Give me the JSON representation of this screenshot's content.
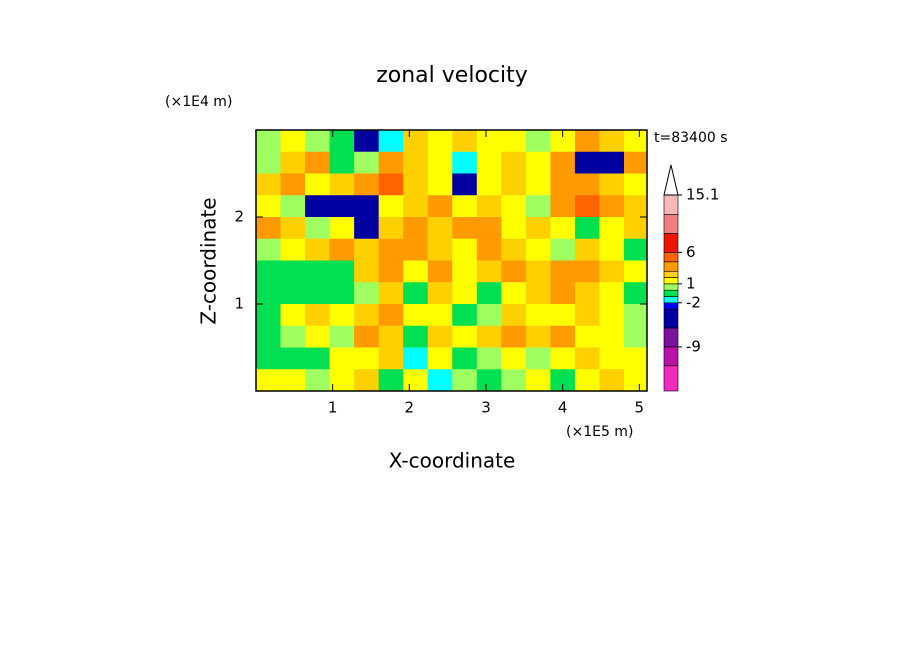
{
  "chart_data": {
    "type": "contour",
    "title": "zonal velocity",
    "x_label": "X-coordinate",
    "y_label": "Z-coordinate",
    "x_unit": "(×1E5 m)",
    "y_unit": "(×1E4 m)",
    "annotation": "t=83400 s",
    "xlim": [
      0,
      5.1
    ],
    "ylim": [
      0,
      3
    ],
    "xticks": [
      1,
      2,
      3,
      4,
      5
    ],
    "yticks": [
      1,
      2
    ],
    "x": [
      0.16,
      0.48,
      0.8,
      1.12,
      1.44,
      1.76,
      2.08,
      2.4,
      2.72,
      3.04,
      3.36,
      3.68,
      4.0,
      4.32,
      4.64,
      4.96
    ],
    "y": [
      2.875,
      2.625,
      2.375,
      2.125,
      1.875,
      1.625,
      1.375,
      1.125,
      0.875,
      0.625,
      0.375,
      0.125
    ],
    "z": [
      [
        0,
        1,
        0,
        -1,
        -5,
        -2,
        2,
        1,
        2,
        1,
        1,
        0,
        1,
        3,
        2,
        1
      ],
      [
        0.5,
        2,
        4,
        -1,
        0,
        3,
        2,
        1,
        -2,
        1,
        2,
        1,
        3,
        -5,
        -4,
        3
      ],
      [
        2,
        4,
        1,
        2,
        4,
        5,
        2,
        1,
        -4,
        1,
        2,
        1,
        3,
        4,
        2,
        1
      ],
      [
        1,
        0.5,
        -4,
        -5,
        -4,
        1,
        2,
        3,
        1,
        2,
        1,
        0.5,
        4,
        5,
        3,
        2
      ],
      [
        3,
        2,
        0,
        1,
        -4,
        2,
        3,
        2,
        4,
        3,
        1,
        2,
        1,
        -1,
        1,
        2
      ],
      [
        0,
        1,
        2,
        3,
        2,
        4,
        3,
        2,
        1,
        3,
        2,
        1,
        0.5,
        2,
        1,
        -1
      ],
      [
        -0.5,
        -1,
        -0.5,
        -1,
        2,
        3,
        1,
        3,
        1,
        2,
        3,
        2,
        4,
        3,
        2,
        1
      ],
      [
        -0.5,
        -0.5,
        -1,
        -0.5,
        0.5,
        2,
        -1,
        2,
        1,
        -1,
        1,
        2,
        3,
        2,
        1,
        -1
      ],
      [
        -0.5,
        1,
        2,
        1,
        2,
        4,
        1,
        1,
        -1,
        0.5,
        2,
        1,
        1,
        2,
        1,
        0.5
      ],
      [
        -0.5,
        0.5,
        1,
        0.5,
        3,
        2,
        -1,
        2,
        1,
        2,
        3,
        2,
        3,
        1,
        1,
        0.5
      ],
      [
        -0.5,
        -1,
        -0.5,
        1,
        1,
        2,
        -2,
        1,
        -1,
        0.5,
        1,
        0.5,
        1,
        2,
        1,
        1
      ],
      [
        1,
        1,
        0.5,
        1,
        2,
        -1,
        1,
        -2,
        0.5,
        -1,
        0.5,
        1,
        -1,
        1,
        2,
        1
      ]
    ],
    "levels": [
      -16,
      -12,
      -9,
      -6,
      -3,
      -2,
      -1,
      0,
      1,
      2,
      3,
      4.5,
      6,
      9,
      12,
      15.1
    ],
    "colors": [
      "#f02cc0",
      "#b812a8",
      "#7a129c",
      "#0000a0",
      "#0000ff",
      "#00ffff",
      "#00e050",
      "#a0ff60",
      "#ffff00",
      "#ffd000",
      "#ff9a00",
      "#ff6400",
      "#ee1500",
      "#f08080",
      "#f6b8b8"
    ],
    "colorbar_ticks": [
      15.1,
      6,
      1,
      -2,
      -9
    ]
  }
}
